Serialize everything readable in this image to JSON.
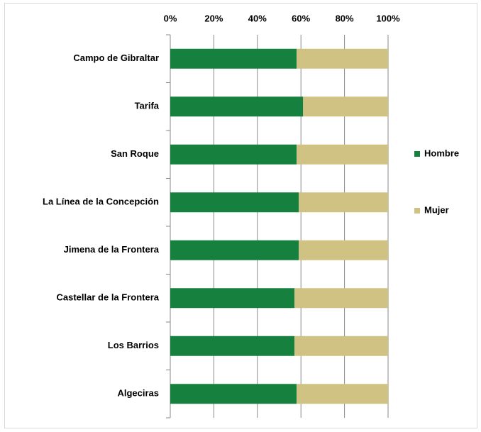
{
  "chart_data": {
    "type": "stacked-bar-horizontal",
    "categories": [
      "Campo de Gibraltar",
      "Tarifa",
      "San Roque",
      "La Línea de la Concepción",
      "Jimena de la Frontera",
      "Castellar de la Frontera",
      "Los Barrios",
      "Algeciras"
    ],
    "series": [
      {
        "name": "Hombre",
        "color": "#16813f",
        "values": [
          58,
          61,
          58,
          59,
          59,
          57,
          57,
          58
        ]
      },
      {
        "name": "Mujer",
        "color": "#cfc282",
        "values": [
          42,
          39,
          42,
          41,
          41,
          43,
          43,
          42
        ]
      }
    ],
    "xlim": [
      0,
      100
    ],
    "xticks": [
      {
        "value": 0,
        "label": "0%"
      },
      {
        "value": 20,
        "label": "20%"
      },
      {
        "value": 40,
        "label": "40%"
      },
      {
        "value": 60,
        "label": "60%"
      },
      {
        "value": 80,
        "label": "80%"
      },
      {
        "value": 100,
        "label": "100%"
      }
    ],
    "grid": true,
    "legend": "right"
  }
}
